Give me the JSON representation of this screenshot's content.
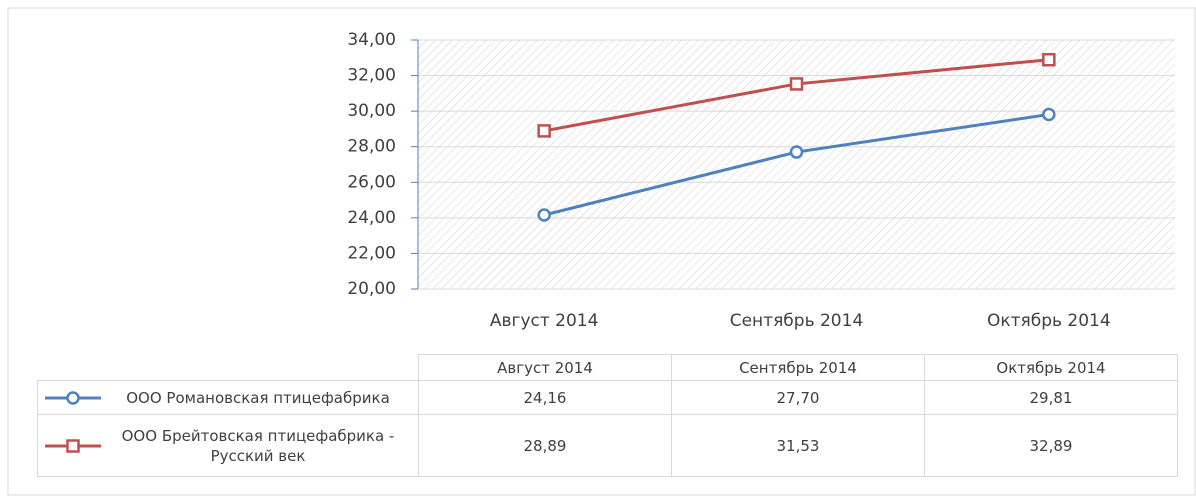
{
  "chart_data": {
    "type": "line",
    "categories": [
      "Август 2014",
      "Сентябрь 2014",
      "Октябрь 2014"
    ],
    "series": [
      {
        "name": "ООО Романовская птицефабрика",
        "color": "#4f81bd",
        "marker": "circle",
        "values": [
          24.16,
          27.7,
          29.81
        ],
        "value_labels": [
          "24,16",
          "27,70",
          "29,81"
        ]
      },
      {
        "name": "ООО Брейтовская птицефабрика - Русский век",
        "color": "#c0504d",
        "marker": "square",
        "values": [
          28.89,
          31.53,
          32.89
        ],
        "value_labels": [
          "28,89",
          "31,53",
          "32,89"
        ]
      }
    ],
    "ylim": [
      20,
      34
    ],
    "yticks": [
      {
        "value": 20,
        "label": "20,00"
      },
      {
        "value": 22,
        "label": "22,00"
      },
      {
        "value": 24,
        "label": "24,00"
      },
      {
        "value": 26,
        "label": "26,00"
      },
      {
        "value": 28,
        "label": "28,00"
      },
      {
        "value": 30,
        "label": "30,00"
      },
      {
        "value": 32,
        "label": "32,00"
      },
      {
        "value": 34,
        "label": "34,00"
      }
    ],
    "grid": true,
    "data_table": true
  }
}
